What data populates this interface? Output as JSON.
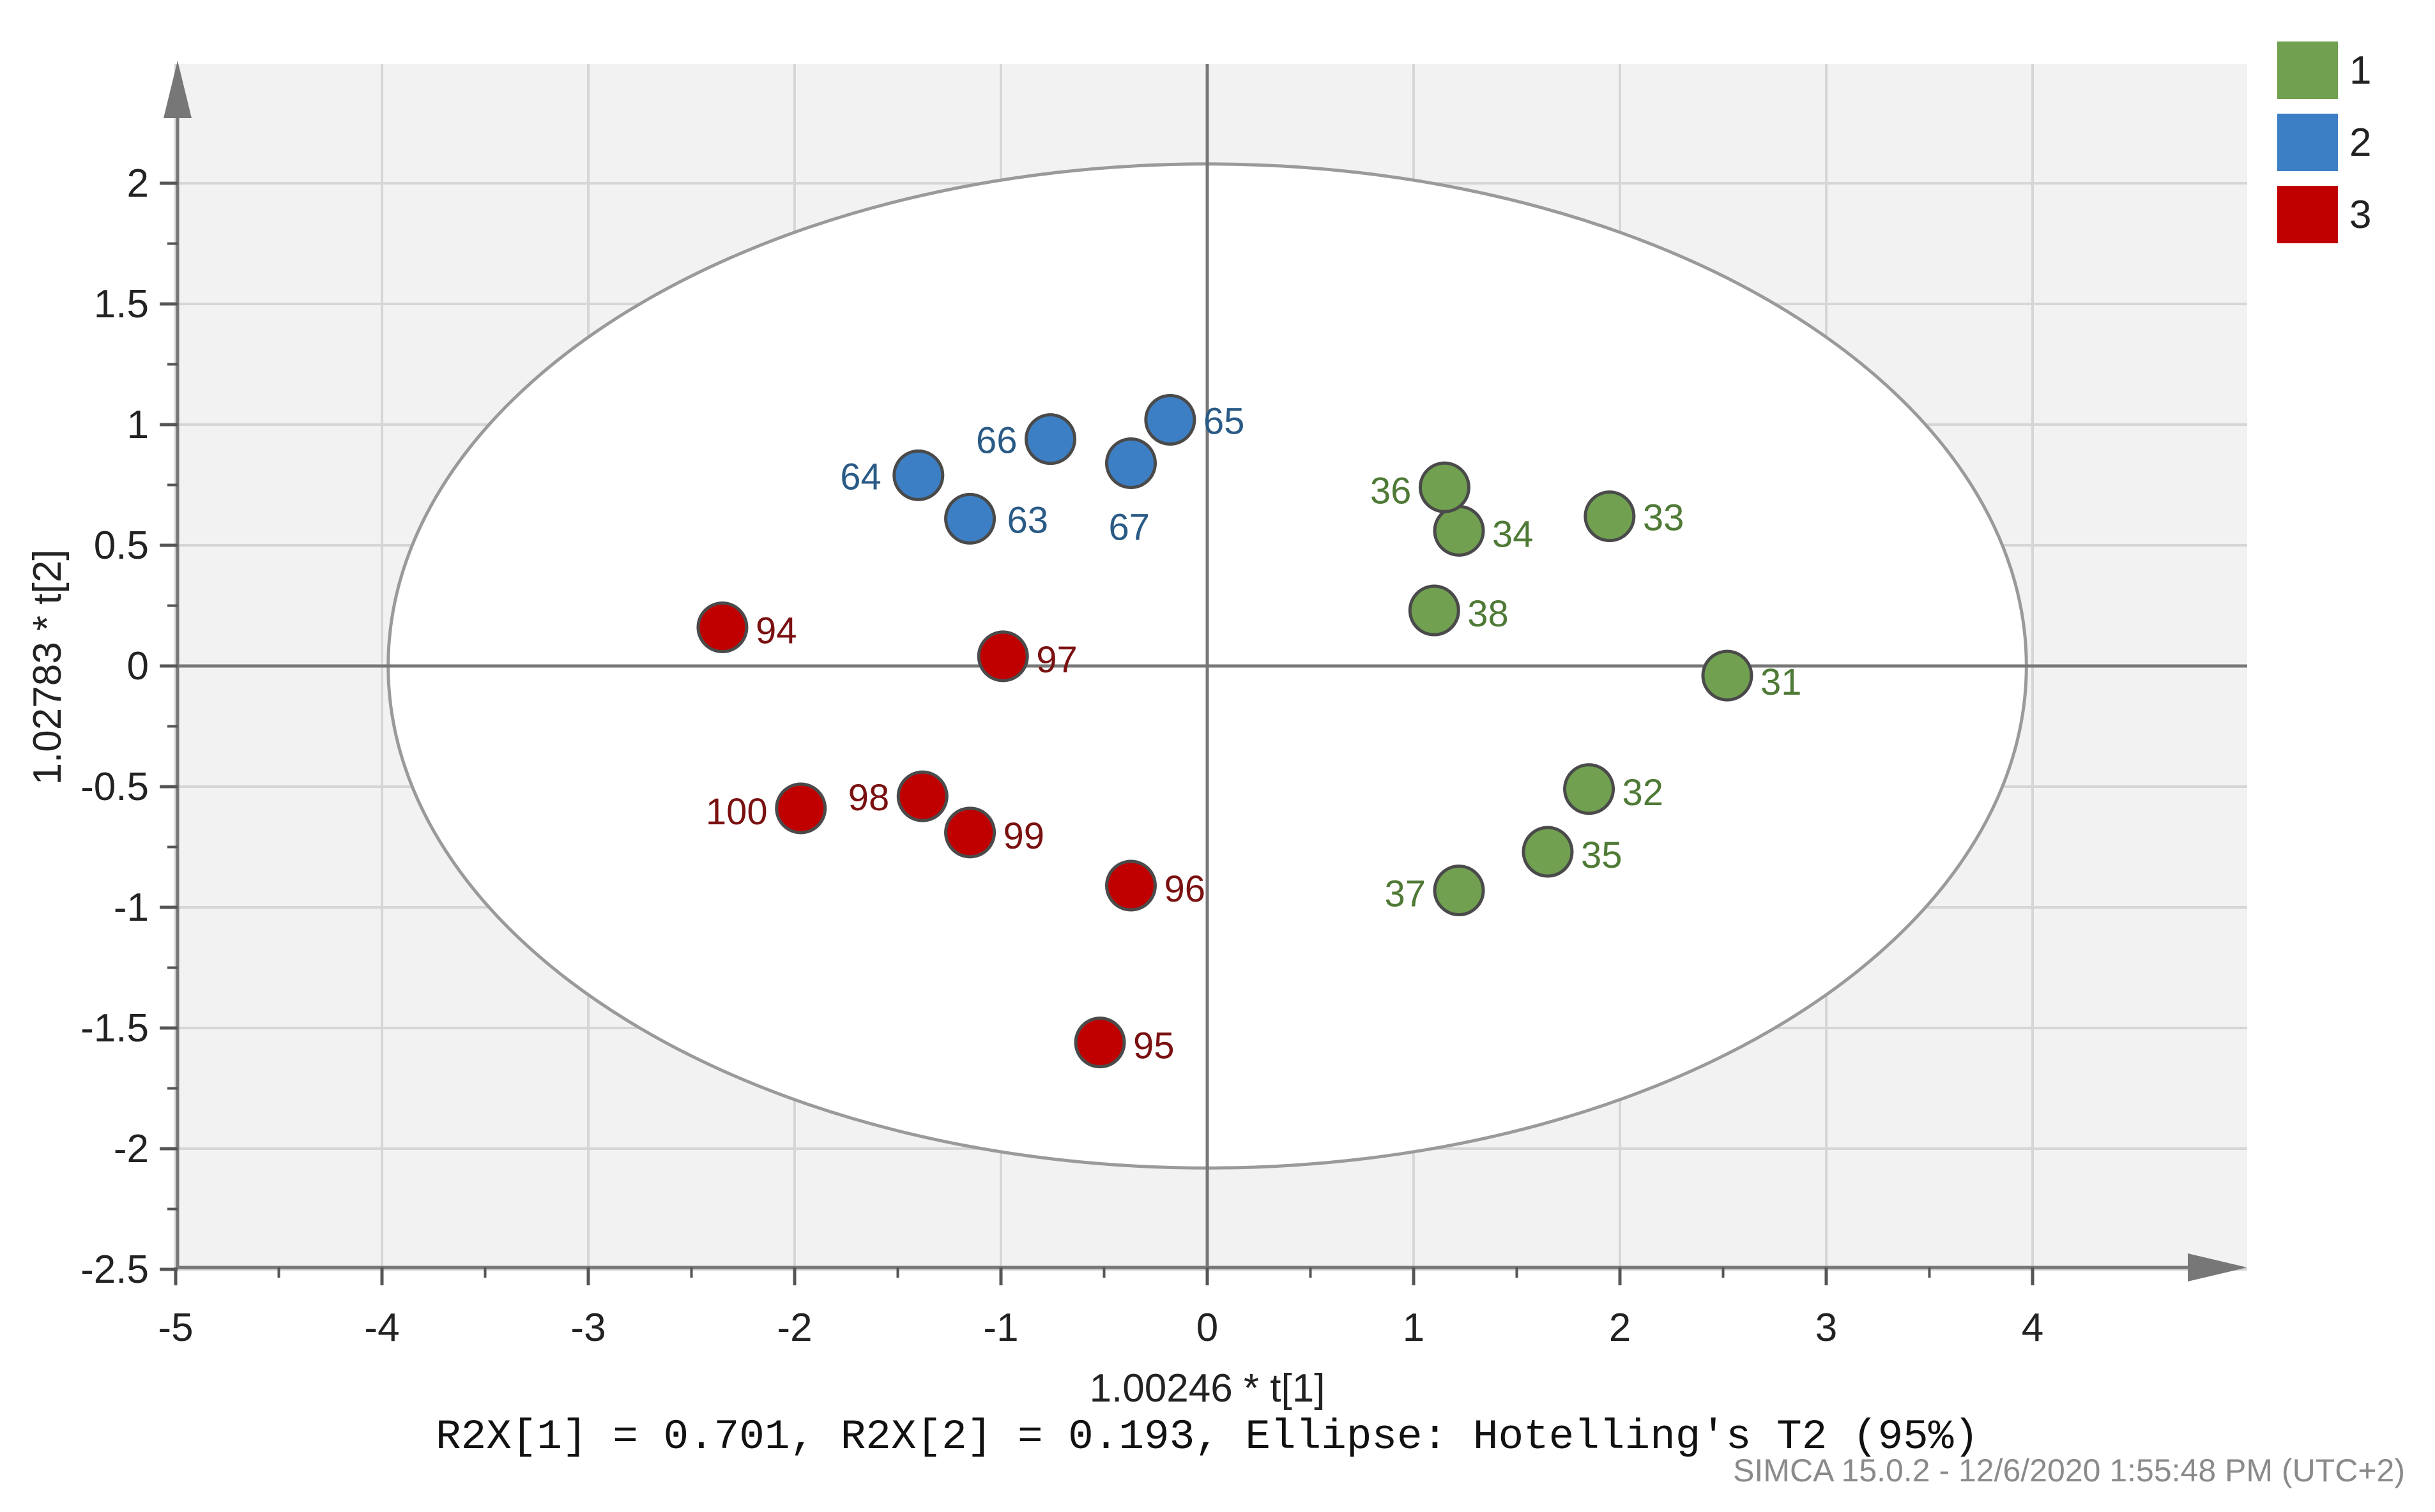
{
  "chart_data": {
    "type": "scatter",
    "title": "",
    "xlabel": "1.00246 * t[1]",
    "ylabel": "1.02783 * t[2]",
    "xlim": [
      -5,
      5
    ],
    "ylim": [
      -2.5,
      2.5
    ],
    "x_ticks": [
      -5,
      -4,
      -3,
      -2,
      -1,
      0,
      1,
      2,
      3,
      4
    ],
    "x_tick_labels": [
      "-5",
      "-4",
      "-3",
      "-2",
      "-1",
      "0",
      "1",
      "2",
      "3",
      "4"
    ],
    "y_ticks": [
      -2.5,
      -2,
      -1.5,
      -1,
      -0.5,
      0,
      0.5,
      1,
      1.5,
      2
    ],
    "y_tick_labels": [
      "-2.5",
      "-2",
      "-1.5",
      "-1",
      "-0.5",
      "0",
      "0.5",
      "1",
      "1.5",
      "2"
    ],
    "grid": true,
    "legend_position": "top-right",
    "ellipse": {
      "label": "Hotelling's T2 (95%)",
      "x_radius": 3.97,
      "y_radius": 2.08
    },
    "series": [
      {
        "name": "1",
        "color": "#70a050",
        "label_color": "#4f7a36",
        "points": [
          {
            "label": "31",
            "x": 2.52,
            "y": -0.04
          },
          {
            "label": "32",
            "x": 1.85,
            "y": -0.51
          },
          {
            "label": "33",
            "x": 1.95,
            "y": 0.62
          },
          {
            "label": "34",
            "x": 1.22,
            "y": 0.56
          },
          {
            "label": "35",
            "x": 1.65,
            "y": -0.77
          },
          {
            "label": "36",
            "x": 1.15,
            "y": 0.74
          },
          {
            "label": "37",
            "x": 1.22,
            "y": -0.93
          },
          {
            "label": "38",
            "x": 1.1,
            "y": 0.23
          }
        ]
      },
      {
        "name": "2",
        "color": "#3d7fc4",
        "label_color": "#2a5a86",
        "points": [
          {
            "label": "63",
            "x": -1.15,
            "y": 0.61
          },
          {
            "label": "64",
            "x": -1.4,
            "y": 0.79
          },
          {
            "label": "65",
            "x": -0.18,
            "y": 1.02
          },
          {
            "label": "66",
            "x": -0.76,
            "y": 0.94
          },
          {
            "label": "67",
            "x": -0.37,
            "y": 0.84
          }
        ]
      },
      {
        "name": "3",
        "color": "#c00000",
        "label_color": "#7a1010",
        "points": [
          {
            "label": "94",
            "x": -2.35,
            "y": 0.16
          },
          {
            "label": "95",
            "x": -0.52,
            "y": -1.56
          },
          {
            "label": "96",
            "x": -0.37,
            "y": -0.91
          },
          {
            "label": "97",
            "x": -0.99,
            "y": 0.04
          },
          {
            "label": "98",
            "x": -1.38,
            "y": -0.54
          },
          {
            "label": "99",
            "x": -1.15,
            "y": -0.69
          },
          {
            "label": "100",
            "x": -1.97,
            "y": -0.59
          }
        ]
      }
    ],
    "caption": "R2X[1] = 0.701, R2X[2] = 0.193, Ellipse: Hotelling's T2 (95%)",
    "footer": "SIMCA 15.0.2 - 12/6/2020 1:55:48 PM (UTC+2)"
  }
}
